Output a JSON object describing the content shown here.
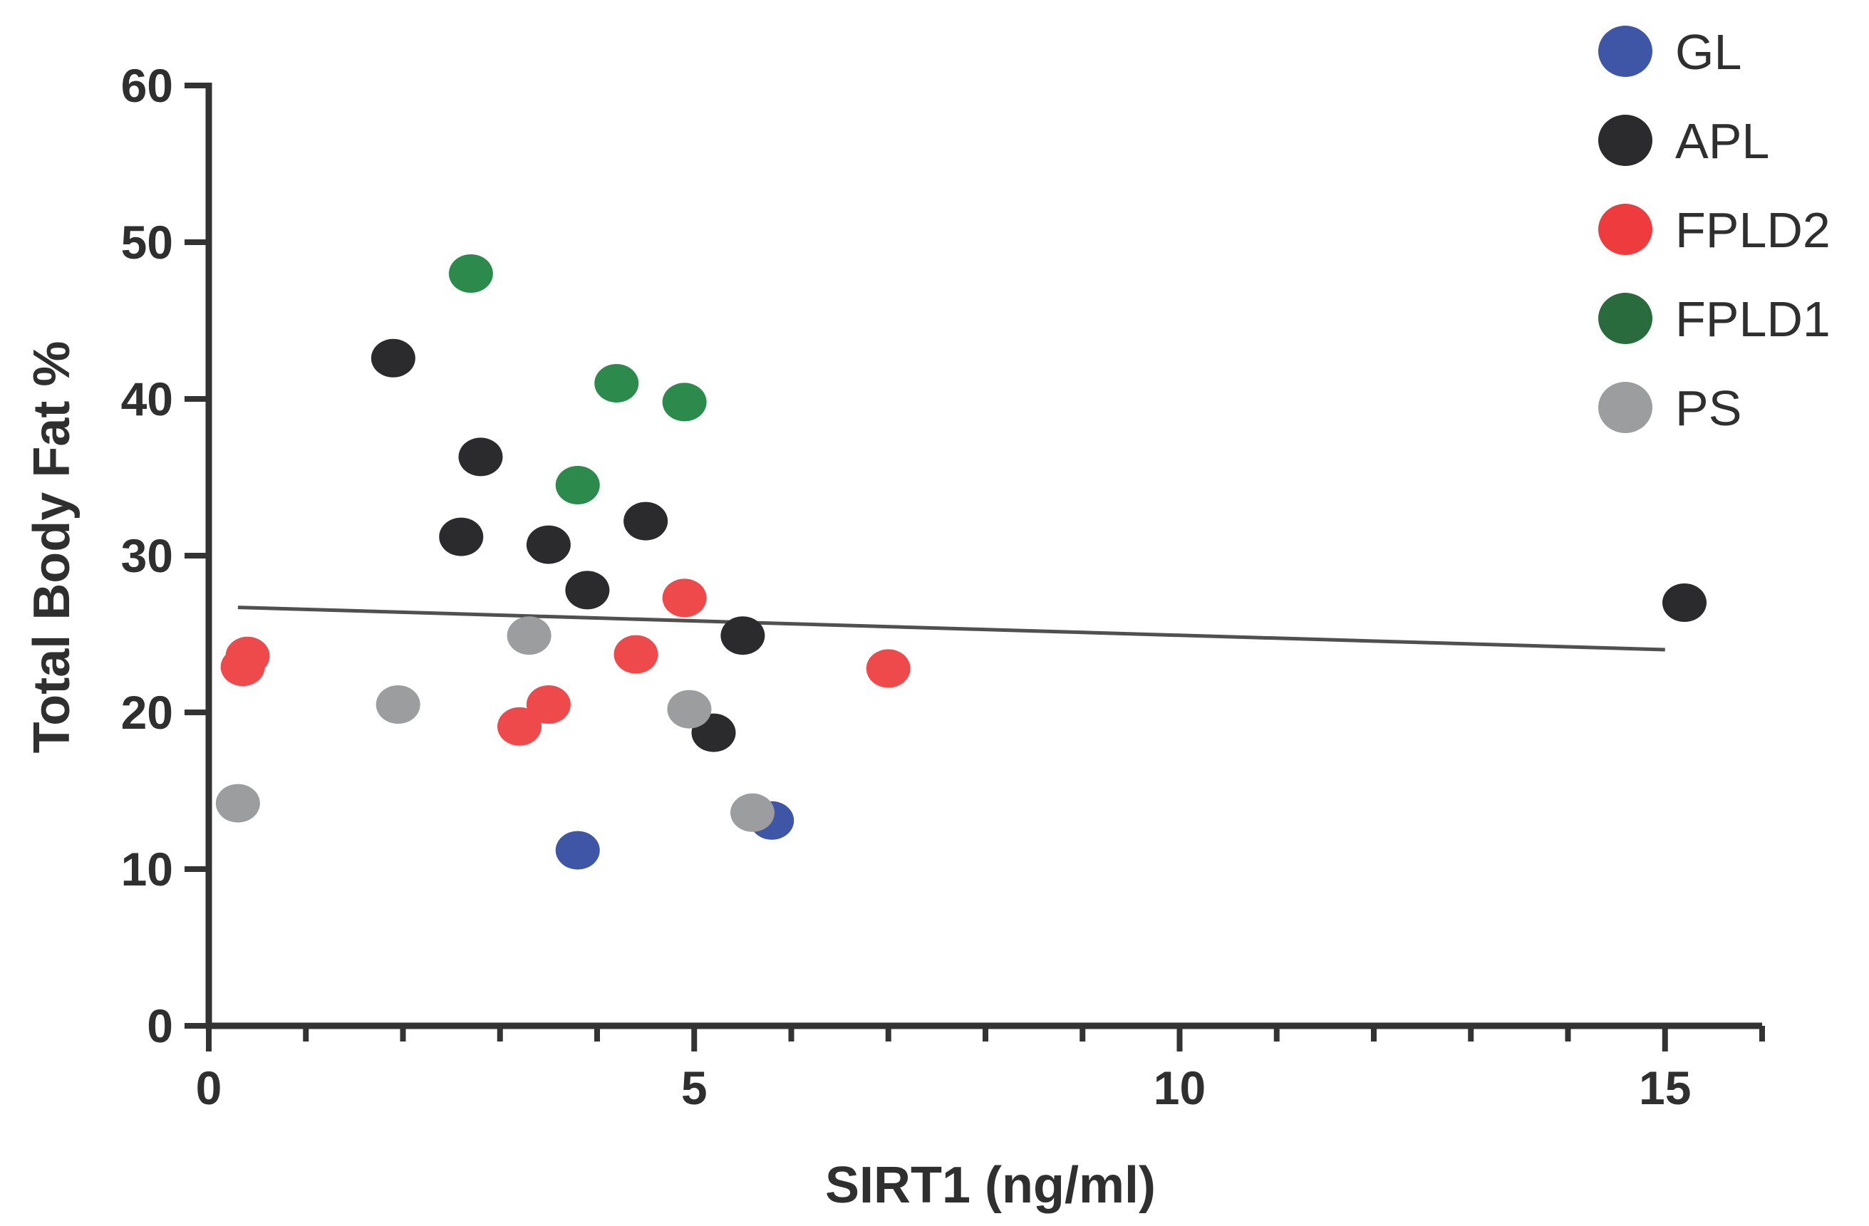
{
  "chart_data": {
    "type": "scatter",
    "title": "",
    "xlabel": "SIRT1 (ng/ml)",
    "ylabel": "Total Body Fat %",
    "xlim": [
      0,
      16
    ],
    "ylim": [
      0,
      60
    ],
    "x_major_ticks": [
      0,
      5,
      10,
      15
    ],
    "x_minor_ticks": [
      1,
      2,
      3,
      4,
      6,
      7,
      8,
      9,
      11,
      12,
      13,
      14,
      16
    ],
    "y_ticks": [
      0,
      10,
      20,
      30,
      40,
      50,
      60
    ],
    "x_tick_labels": [
      "0",
      "5",
      "10",
      "15"
    ],
    "y_tick_labels": [
      "0",
      "10",
      "20",
      "30",
      "40",
      "50",
      "60"
    ],
    "grid": false,
    "legend_position": "top-right",
    "series": [
      {
        "name": "GL",
        "color": "#3f56a6",
        "points": [
          {
            "x": 3.8,
            "y": 11.2
          },
          {
            "x": 5.8,
            "y": 13.1
          }
        ]
      },
      {
        "name": "APL",
        "color": "#2b2b2d",
        "points": [
          {
            "x": 1.9,
            "y": 42.6
          },
          {
            "x": 2.8,
            "y": 36.3
          },
          {
            "x": 2.6,
            "y": 31.2
          },
          {
            "x": 3.5,
            "y": 30.7
          },
          {
            "x": 4.5,
            "y": 32.2
          },
          {
            "x": 3.9,
            "y": 27.8
          },
          {
            "x": 5.5,
            "y": 24.9
          },
          {
            "x": 5.2,
            "y": 18.7
          },
          {
            "x": 15.2,
            "y": 27.0
          }
        ]
      },
      {
        "name": "FPLD2",
        "color": "#ee4a4b",
        "points": [
          {
            "x": 0.4,
            "y": 23.6
          },
          {
            "x": 0.35,
            "y": 22.9
          },
          {
            "x": 3.2,
            "y": 19.1
          },
          {
            "x": 3.5,
            "y": 20.5
          },
          {
            "x": 4.4,
            "y": 23.7
          },
          {
            "x": 4.9,
            "y": 27.3
          },
          {
            "x": 7.0,
            "y": 22.8
          }
        ]
      },
      {
        "name": "FPLD1",
        "color": "#2b8a4c",
        "points": [
          {
            "x": 2.7,
            "y": 48.0
          },
          {
            "x": 4.2,
            "y": 41.0
          },
          {
            "x": 4.9,
            "y": 39.8
          },
          {
            "x": 3.8,
            "y": 34.5
          }
        ]
      },
      {
        "name": "PS",
        "color": "#9c9d9f",
        "points": [
          {
            "x": 0.3,
            "y": 14.2
          },
          {
            "x": 1.95,
            "y": 20.5
          },
          {
            "x": 3.3,
            "y": 24.9
          },
          {
            "x": 4.95,
            "y": 20.2
          },
          {
            "x": 5.6,
            "y": 13.6
          }
        ]
      }
    ],
    "trendline": {
      "color": "#505050",
      "x": [
        0.3,
        15.0
      ],
      "y": [
        26.7,
        24.0
      ]
    },
    "legend": [
      {
        "label": "GL",
        "color": "#3f56a6"
      },
      {
        "label": "APL",
        "color": "#2b2b2d"
      },
      {
        "label": "FPLD2",
        "color": "#ee3b3e"
      },
      {
        "label": "FPLD1",
        "color": "#2a6b3d"
      },
      {
        "label": "PS",
        "color": "#9c9d9f"
      }
    ],
    "axis_color": "#333333"
  }
}
